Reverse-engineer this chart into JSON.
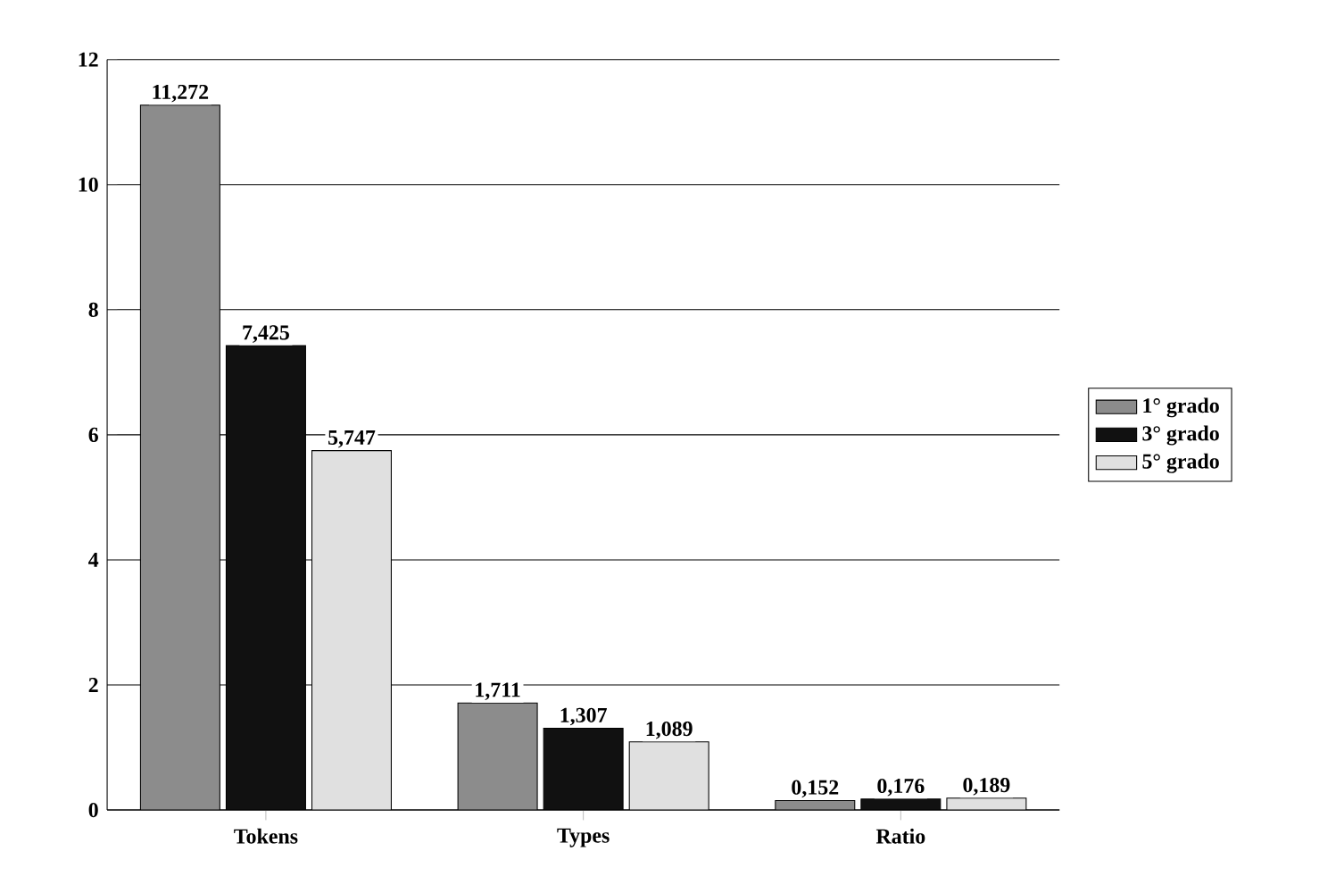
{
  "chart_data": {
    "type": "bar",
    "categories": [
      "Tokens",
      "Types",
      "Ratio"
    ],
    "series": [
      {
        "name": "1° grado",
        "color": "#8c8c8c",
        "values": [
          11.272,
          1.711,
          0.152
        ],
        "value_labels": [
          "11,272",
          "1,711",
          "0,152"
        ]
      },
      {
        "name": "3° grado",
        "color": "#111111",
        "values": [
          7.425,
          1.307,
          0.176
        ],
        "value_labels": [
          "7,425",
          "1,307",
          "0,176"
        ]
      },
      {
        "name": "5° grado",
        "color": "#e0e0e0",
        "values": [
          5.747,
          1.089,
          0.189
        ],
        "value_labels": [
          "5,747",
          "1,089",
          "0,189"
        ]
      }
    ],
    "ylim": [
      0,
      12
    ],
    "yticks": [
      0,
      2,
      4,
      6,
      8,
      10,
      12
    ],
    "grid": "y",
    "legend": "right"
  }
}
